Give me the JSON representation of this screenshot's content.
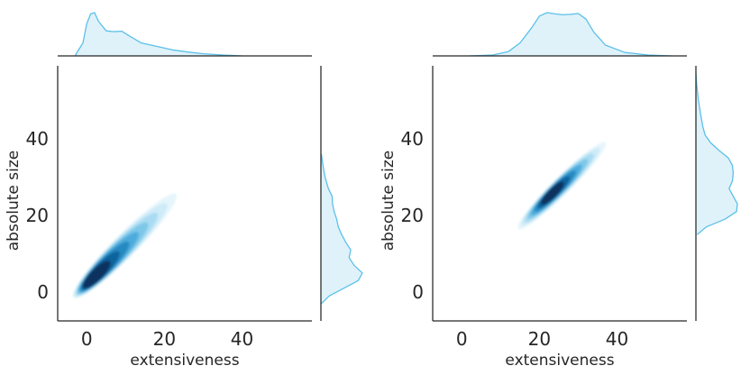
{
  "colors": {
    "accent": "#5bc0e8",
    "fill": "#dff2fa",
    "dark": "#08224a",
    "axis": "#262626"
  },
  "chart_data": [
    {
      "type": "kde-joint",
      "xlabel": "extensiveness",
      "ylabel": "absolute size",
      "xlim": [
        -7.5,
        58
      ],
      "ylim": [
        -7.5,
        59
      ],
      "xticks": [
        0,
        20,
        40
      ],
      "yticks": [
        0,
        20,
        40
      ],
      "xtick_labels": [
        "0",
        "20",
        "40"
      ],
      "ytick_labels": [
        "0",
        "20",
        "40"
      ],
      "grid": false,
      "density": {
        "center": [
          1.5,
          3.5
        ],
        "start": [
          -3.5,
          -1.5
        ],
        "end": [
          23,
          25.5
        ],
        "width": 3.2
      },
      "marginal_x": {
        "x": [
          -3,
          -1,
          0,
          1,
          2,
          3,
          5,
          7,
          9,
          11,
          14,
          18,
          22,
          26,
          30,
          35,
          40
        ],
        "density": [
          0.01,
          0.3,
          0.75,
          0.97,
          1.0,
          0.8,
          0.58,
          0.56,
          0.57,
          0.46,
          0.3,
          0.22,
          0.14,
          0.09,
          0.05,
          0.02,
          0.0
        ]
      },
      "marginal_y": {
        "y": [
          -3,
          -1,
          1,
          3,
          5,
          7,
          9,
          11,
          13,
          15,
          17,
          19,
          21,
          23,
          25,
          27,
          30,
          33,
          36
        ],
        "density": [
          0.01,
          0.2,
          0.55,
          0.9,
          1.0,
          0.8,
          0.68,
          0.72,
          0.6,
          0.5,
          0.42,
          0.38,
          0.32,
          0.28,
          0.27,
          0.18,
          0.1,
          0.05,
          0.01
        ]
      }
    },
    {
      "type": "kde-joint",
      "xlabel": "extensiveness",
      "ylabel": "absolute size",
      "xlim": [
        -7.5,
        58
      ],
      "ylim": [
        -7.5,
        59
      ],
      "xticks": [
        0,
        20,
        40
      ],
      "yticks": [
        0,
        20,
        40
      ],
      "xtick_labels": [
        "0",
        "20",
        "40"
      ],
      "ytick_labels": [
        "0",
        "20",
        "40"
      ],
      "grid": false,
      "density": {
        "center": [
          23,
          25.5
        ],
        "start": [
          14.5,
          16.5
        ],
        "end": [
          37,
          39
        ],
        "width": 2.4
      },
      "marginal_x": {
        "x": [
          2,
          8,
          12,
          15,
          18,
          20,
          22,
          24,
          26,
          28,
          30,
          32,
          34,
          37,
          42,
          48,
          54
        ],
        "density": [
          0.0,
          0.02,
          0.1,
          0.3,
          0.65,
          0.92,
          1.0,
          0.97,
          0.95,
          0.96,
          0.98,
          0.85,
          0.55,
          0.25,
          0.08,
          0.02,
          0.0
        ]
      },
      "marginal_y": {
        "y": [
          15,
          17,
          19,
          21,
          23,
          25,
          27,
          29,
          31,
          33,
          35,
          37,
          39,
          41,
          43,
          46,
          50,
          54,
          57
        ],
        "density": [
          0.03,
          0.25,
          0.7,
          0.98,
          1.0,
          0.9,
          0.8,
          0.88,
          0.9,
          0.88,
          0.78,
          0.55,
          0.35,
          0.22,
          0.17,
          0.12,
          0.06,
          0.02,
          0.0
        ]
      }
    }
  ]
}
